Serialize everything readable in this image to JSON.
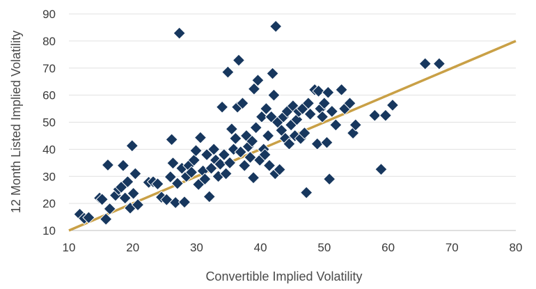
{
  "chart_data": {
    "type": "scatter",
    "xlabel": "Convertible Implied Volatility",
    "ylabel": "12 Month Listed Implied Volatility",
    "xlim": [
      10,
      80
    ],
    "ylim": [
      10,
      90
    ],
    "x_ticks": [
      "10",
      "20",
      "30",
      "40",
      "50",
      "60",
      "70",
      "80"
    ],
    "y_ticks": [
      "10",
      "20",
      "30",
      "40",
      "50",
      "60",
      "70",
      "80",
      "90"
    ],
    "grid": "horizontal",
    "marker": "diamond",
    "marker_color": "#17375E",
    "line_color": "#C9A046",
    "trend_line": [
      [
        10,
        10
      ],
      [
        80,
        80
      ]
    ],
    "points": [
      [
        11.7,
        16.0
      ],
      [
        12.4,
        14.5
      ],
      [
        13.1,
        14.8
      ],
      [
        14.8,
        22.0
      ],
      [
        15.2,
        21.5
      ],
      [
        15.8,
        14.2
      ],
      [
        16.1,
        34.2
      ],
      [
        16.4,
        18.0
      ],
      [
        17.3,
        23.0
      ],
      [
        17.8,
        25.2
      ],
      [
        18.2,
        26.0
      ],
      [
        18.5,
        34.0
      ],
      [
        18.8,
        22.0
      ],
      [
        19.2,
        28.0
      ],
      [
        19.6,
        18.3
      ],
      [
        19.9,
        41.3
      ],
      [
        20.1,
        23.7
      ],
      [
        20.4,
        31.0
      ],
      [
        20.8,
        19.5
      ],
      [
        22.5,
        27.8
      ],
      [
        23.2,
        28.0
      ],
      [
        23.9,
        27.2
      ],
      [
        24.5,
        22.3
      ],
      [
        25.3,
        21.4
      ],
      [
        25.9,
        29.8
      ],
      [
        26.1,
        43.6
      ],
      [
        26.3,
        34.9
      ],
      [
        26.7,
        20.3
      ],
      [
        27.0,
        27.4
      ],
      [
        27.3,
        82.9
      ],
      [
        27.7,
        33.0
      ],
      [
        28.1,
        20.5
      ],
      [
        28.4,
        30.0
      ],
      [
        28.8,
        34.0
      ],
      [
        29.2,
        31.5
      ],
      [
        29.6,
        36.0
      ],
      [
        29.9,
        39.5
      ],
      [
        30.3,
        27.0
      ],
      [
        30.6,
        44.3
      ],
      [
        31.0,
        32.0
      ],
      [
        31.3,
        29.0
      ],
      [
        31.6,
        38.0
      ],
      [
        32.0,
        22.5
      ],
      [
        32.3,
        33.0
      ],
      [
        32.7,
        40.0
      ],
      [
        33.0,
        36.0
      ],
      [
        33.4,
        30.0
      ],
      [
        33.7,
        34.5
      ],
      [
        34.0,
        55.6
      ],
      [
        34.3,
        38.0
      ],
      [
        34.6,
        31.0
      ],
      [
        34.9,
        68.5
      ],
      [
        35.2,
        35.0
      ],
      [
        35.5,
        47.5
      ],
      [
        35.8,
        40.0
      ],
      [
        36.1,
        44.0
      ],
      [
        36.4,
        55.6
      ],
      [
        36.6,
        72.9
      ],
      [
        36.9,
        39.0
      ],
      [
        37.2,
        57.0
      ],
      [
        37.5,
        34.0
      ],
      [
        37.8,
        45.0
      ],
      [
        38.1,
        41.0
      ],
      [
        38.4,
        37.0
      ],
      [
        38.7,
        43.0
      ],
      [
        38.9,
        29.5
      ],
      [
        39.0,
        62.3
      ],
      [
        39.3,
        48.0
      ],
      [
        39.6,
        65.5
      ],
      [
        39.9,
        36.0
      ],
      [
        40.2,
        52.0
      ],
      [
        40.5,
        40.0
      ],
      [
        40.7,
        38.0
      ],
      [
        40.9,
        55.0
      ],
      [
        41.2,
        45.0
      ],
      [
        41.4,
        34.0
      ],
      [
        41.7,
        52.0
      ],
      [
        41.9,
        68.0
      ],
      [
        42.1,
        60.0
      ],
      [
        42.3,
        31.0
      ],
      [
        42.4,
        85.4
      ],
      [
        42.7,
        50.0
      ],
      [
        43.0,
        32.5
      ],
      [
        43.3,
        47.0
      ],
      [
        43.6,
        52.0
      ],
      [
        43.9,
        44.0
      ],
      [
        44.2,
        54.0
      ],
      [
        44.5,
        42.0
      ],
      [
        44.8,
        49.0
      ],
      [
        45.1,
        56.0
      ],
      [
        45.4,
        45.0
      ],
      [
        45.7,
        51.0
      ],
      [
        46.0,
        54.0
      ],
      [
        46.3,
        44.0
      ],
      [
        46.6,
        55.0
      ],
      [
        46.9,
        46.0
      ],
      [
        47.2,
        24.0
      ],
      [
        47.5,
        57.0
      ],
      [
        47.8,
        53.0
      ],
      [
        48.5,
        62.0
      ],
      [
        48.9,
        42.0
      ],
      [
        49.1,
        61.5
      ],
      [
        49.4,
        55.0
      ],
      [
        49.7,
        52.0
      ],
      [
        50.0,
        57.0
      ],
      [
        50.4,
        42.5
      ],
      [
        50.6,
        61.0
      ],
      [
        50.8,
        29.0
      ],
      [
        51.2,
        54.0
      ],
      [
        51.8,
        49.0
      ],
      [
        52.7,
        62.0
      ],
      [
        53.2,
        55.0
      ],
      [
        54.0,
        57.0
      ],
      [
        54.5,
        46.0
      ],
      [
        54.9,
        49.0
      ],
      [
        57.9,
        52.5
      ],
      [
        58.9,
        32.6
      ],
      [
        59.6,
        52.5
      ],
      [
        60.7,
        56.3
      ],
      [
        65.8,
        71.6
      ],
      [
        68.0,
        71.6
      ]
    ]
  }
}
